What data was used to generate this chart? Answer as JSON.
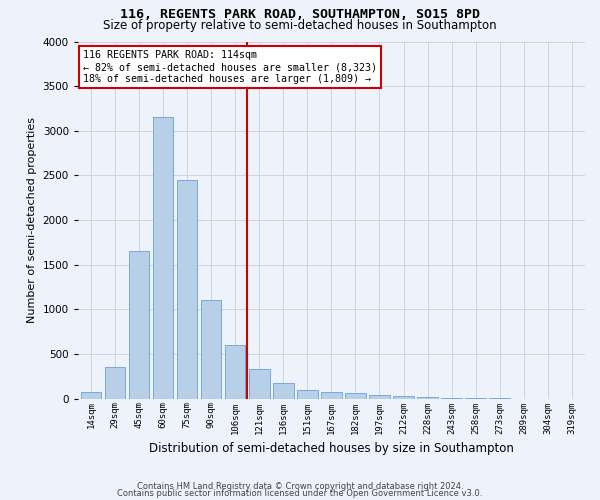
{
  "title1": "116, REGENTS PARK ROAD, SOUTHAMPTON, SO15 8PD",
  "title2": "Size of property relative to semi-detached houses in Southampton",
  "xlabel": "Distribution of semi-detached houses by size in Southampton",
  "ylabel": "Number of semi-detached properties",
  "categories": [
    "14sqm",
    "29sqm",
    "45sqm",
    "60sqm",
    "75sqm",
    "90sqm",
    "106sqm",
    "121sqm",
    "136sqm",
    "151sqm",
    "167sqm",
    "182sqm",
    "197sqm",
    "212sqm",
    "228sqm",
    "243sqm",
    "258sqm",
    "273sqm",
    "289sqm",
    "304sqm",
    "319sqm"
  ],
  "values": [
    75,
    350,
    1650,
    3150,
    2450,
    1100,
    600,
    330,
    170,
    100,
    75,
    65,
    45,
    25,
    15,
    10,
    5,
    2,
    1,
    0,
    0
  ],
  "bar_color": "#b8cfe8",
  "bar_edge_color": "#6a9fd8",
  "vline_x_index": 7,
  "vline_color": "#cc0000",
  "annotation_title": "116 REGENTS PARK ROAD: 114sqm",
  "annotation_line1": "← 82% of semi-detached houses are smaller (8,323)",
  "annotation_line2": "18% of semi-detached houses are larger (1,809) →",
  "annotation_box_facecolor": "#ffffff",
  "annotation_box_edgecolor": "#cc0000",
  "footer1": "Contains HM Land Registry data © Crown copyright and database right 2024.",
  "footer2": "Contains public sector information licensed under the Open Government Licence v3.0.",
  "ylim": [
    0,
    4000
  ],
  "yticks": [
    0,
    500,
    1000,
    1500,
    2000,
    2500,
    3000,
    3500,
    4000
  ],
  "background_color": "#eef2fb",
  "grid_color": "#c5cfe8",
  "title1_fontsize": 9.5,
  "title2_fontsize": 8.5,
  "ylabel_fontsize": 8,
  "xlabel_fontsize": 8.5
}
